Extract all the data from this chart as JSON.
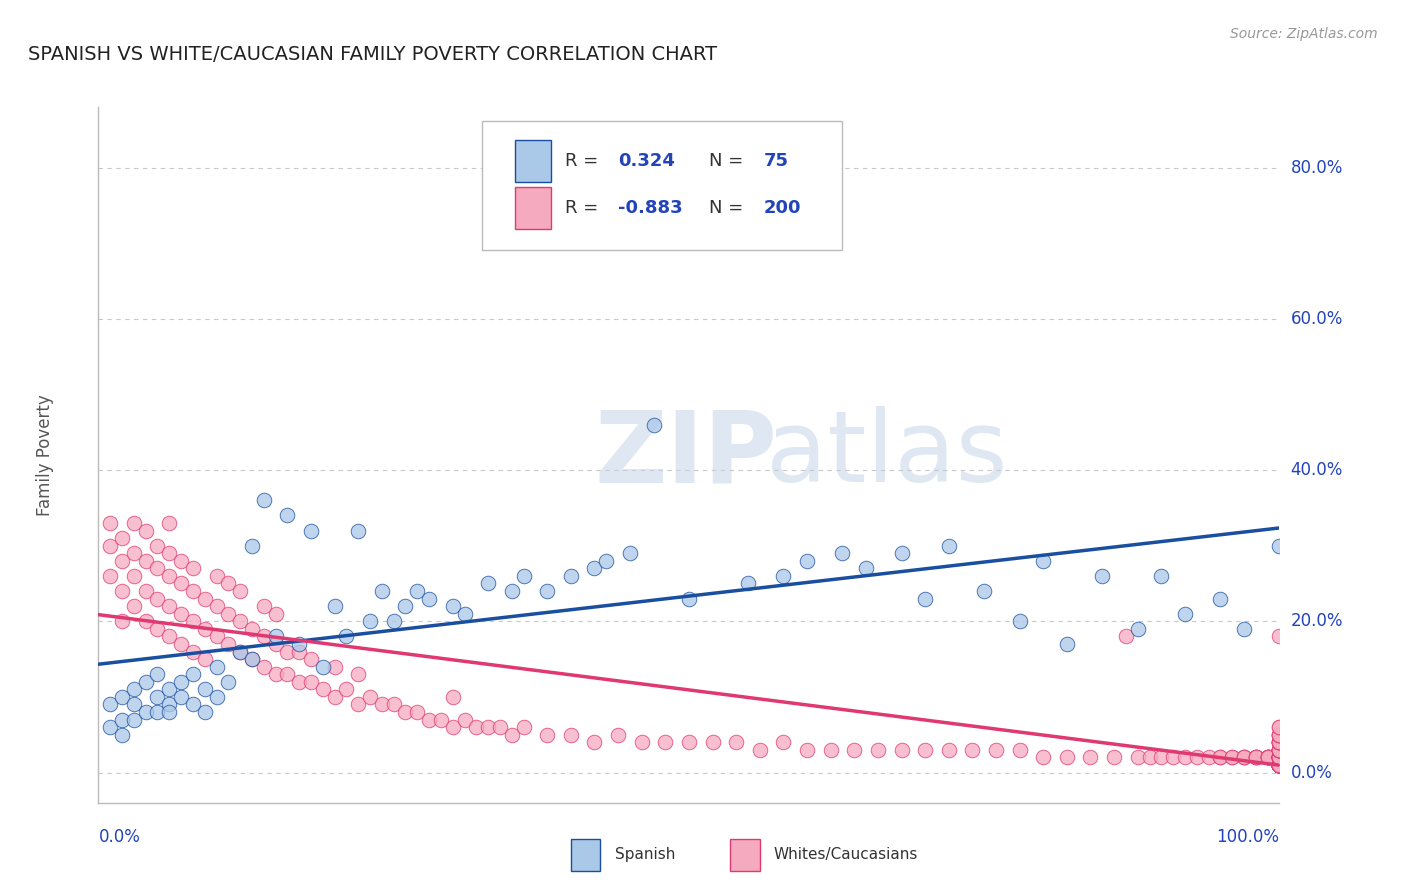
{
  "title": "SPANISH VS WHITE/CAUCASIAN FAMILY POVERTY CORRELATION CHART",
  "source": "Source: ZipAtlas.com",
  "ylabel": "Family Poverty",
  "ytick_vals": [
    0.0,
    0.2,
    0.4,
    0.6,
    0.8
  ],
  "ytick_labels": [
    "0.0%",
    "20.0%",
    "40.0%",
    "60.0%",
    "80.0%"
  ],
  "xlim": [
    0.0,
    1.0
  ],
  "ylim": [
    -0.04,
    0.88
  ],
  "spanish_R": "0.324",
  "spanish_N": "75",
  "white_R": "-0.883",
  "white_N": "200",
  "spanish_color": "#aac8e8",
  "white_color": "#f5aabf",
  "spanish_line_color": "#1a4fa0",
  "white_line_color": "#e03870",
  "background_color": "#ffffff",
  "grid_color": "#c8c8c8",
  "title_color": "#222222",
  "watermark_zip": "ZIP",
  "watermark_atlas": "atlas",
  "legend_text_color": "#2244bb",
  "spanish_x": [
    0.01,
    0.01,
    0.02,
    0.02,
    0.02,
    0.03,
    0.03,
    0.03,
    0.04,
    0.04,
    0.05,
    0.05,
    0.05,
    0.06,
    0.06,
    0.06,
    0.07,
    0.07,
    0.08,
    0.08,
    0.09,
    0.09,
    0.1,
    0.1,
    0.11,
    0.12,
    0.13,
    0.13,
    0.14,
    0.15,
    0.16,
    0.17,
    0.18,
    0.19,
    0.2,
    0.21,
    0.22,
    0.23,
    0.24,
    0.25,
    0.26,
    0.27,
    0.28,
    0.3,
    0.31,
    0.33,
    0.35,
    0.36,
    0.38,
    0.4,
    0.42,
    0.43,
    0.45,
    0.47,
    0.5,
    0.52,
    0.55,
    0.58,
    0.6,
    0.63,
    0.65,
    0.68,
    0.7,
    0.72,
    0.75,
    0.78,
    0.8,
    0.82,
    0.85,
    0.88,
    0.9,
    0.92,
    0.95,
    0.97,
    1.0
  ],
  "spanish_y": [
    0.06,
    0.09,
    0.07,
    0.1,
    0.05,
    0.09,
    0.11,
    0.07,
    0.08,
    0.12,
    0.1,
    0.08,
    0.13,
    0.09,
    0.11,
    0.08,
    0.12,
    0.1,
    0.09,
    0.13,
    0.11,
    0.08,
    0.14,
    0.1,
    0.12,
    0.16,
    0.3,
    0.15,
    0.36,
    0.18,
    0.34,
    0.17,
    0.32,
    0.14,
    0.22,
    0.18,
    0.32,
    0.2,
    0.24,
    0.2,
    0.22,
    0.24,
    0.23,
    0.22,
    0.21,
    0.25,
    0.24,
    0.26,
    0.24,
    0.26,
    0.27,
    0.28,
    0.29,
    0.46,
    0.23,
    0.72,
    0.25,
    0.26,
    0.28,
    0.29,
    0.27,
    0.29,
    0.23,
    0.3,
    0.24,
    0.2,
    0.28,
    0.17,
    0.26,
    0.19,
    0.26,
    0.21,
    0.23,
    0.19,
    0.3
  ],
  "white_x": [
    0.01,
    0.01,
    0.01,
    0.02,
    0.02,
    0.02,
    0.02,
    0.03,
    0.03,
    0.03,
    0.03,
    0.04,
    0.04,
    0.04,
    0.04,
    0.05,
    0.05,
    0.05,
    0.05,
    0.06,
    0.06,
    0.06,
    0.06,
    0.06,
    0.07,
    0.07,
    0.07,
    0.07,
    0.08,
    0.08,
    0.08,
    0.08,
    0.09,
    0.09,
    0.09,
    0.1,
    0.1,
    0.1,
    0.11,
    0.11,
    0.11,
    0.12,
    0.12,
    0.12,
    0.13,
    0.13,
    0.14,
    0.14,
    0.14,
    0.15,
    0.15,
    0.15,
    0.16,
    0.16,
    0.17,
    0.17,
    0.18,
    0.18,
    0.19,
    0.2,
    0.2,
    0.21,
    0.22,
    0.22,
    0.23,
    0.24,
    0.25,
    0.26,
    0.27,
    0.28,
    0.29,
    0.3,
    0.3,
    0.31,
    0.32,
    0.33,
    0.34,
    0.35,
    0.36,
    0.38,
    0.4,
    0.42,
    0.44,
    0.46,
    0.48,
    0.5,
    0.52,
    0.54,
    0.56,
    0.58,
    0.6,
    0.62,
    0.64,
    0.66,
    0.68,
    0.7,
    0.72,
    0.74,
    0.76,
    0.78,
    0.8,
    0.82,
    0.84,
    0.86,
    0.87,
    0.88,
    0.89,
    0.9,
    0.91,
    0.92,
    0.93,
    0.94,
    0.95,
    0.95,
    0.96,
    0.96,
    0.97,
    0.97,
    0.97,
    0.98,
    0.98,
    0.98,
    0.98,
    0.99,
    0.99,
    0.99,
    0.99,
    0.99,
    0.99,
    1.0,
    1.0,
    1.0,
    1.0,
    1.0,
    1.0,
    1.0,
    1.0,
    1.0,
    1.0,
    1.0,
    1.0,
    1.0,
    1.0,
    1.0,
    1.0,
    1.0,
    1.0,
    1.0,
    1.0,
    1.0,
    1.0,
    1.0,
    1.0,
    1.0,
    1.0,
    1.0,
    1.0,
    1.0,
    1.0,
    1.0,
    1.0,
    1.0,
    1.0,
    1.0,
    1.0,
    1.0,
    1.0,
    1.0,
    1.0,
    1.0,
    1.0,
    1.0,
    1.0,
    1.0,
    1.0,
    1.0,
    1.0,
    1.0,
    1.0,
    1.0,
    1.0,
    1.0,
    1.0,
    1.0,
    1.0,
    1.0,
    1.0,
    1.0,
    1.0,
    1.0,
    1.0,
    1.0,
    1.0,
    1.0,
    1.0,
    1.0,
    1.0,
    1.0,
    1.0,
    1.0,
    1.0,
    1.0,
    1.0,
    1.0,
    1.0,
    1.0,
    1.0,
    1.0,
    1.0
  ],
  "white_y": [
    0.3,
    0.26,
    0.33,
    0.28,
    0.24,
    0.31,
    0.2,
    0.26,
    0.22,
    0.29,
    0.33,
    0.24,
    0.28,
    0.2,
    0.32,
    0.23,
    0.27,
    0.19,
    0.3,
    0.22,
    0.26,
    0.18,
    0.29,
    0.33,
    0.21,
    0.25,
    0.17,
    0.28,
    0.2,
    0.24,
    0.16,
    0.27,
    0.19,
    0.23,
    0.15,
    0.18,
    0.22,
    0.26,
    0.17,
    0.21,
    0.25,
    0.16,
    0.2,
    0.24,
    0.15,
    0.19,
    0.14,
    0.18,
    0.22,
    0.13,
    0.17,
    0.21,
    0.13,
    0.16,
    0.12,
    0.16,
    0.12,
    0.15,
    0.11,
    0.1,
    0.14,
    0.11,
    0.09,
    0.13,
    0.1,
    0.09,
    0.09,
    0.08,
    0.08,
    0.07,
    0.07,
    0.06,
    0.1,
    0.07,
    0.06,
    0.06,
    0.06,
    0.05,
    0.06,
    0.05,
    0.05,
    0.04,
    0.05,
    0.04,
    0.04,
    0.04,
    0.04,
    0.04,
    0.03,
    0.04,
    0.03,
    0.03,
    0.03,
    0.03,
    0.03,
    0.03,
    0.03,
    0.03,
    0.03,
    0.03,
    0.02,
    0.02,
    0.02,
    0.02,
    0.18,
    0.02,
    0.02,
    0.02,
    0.02,
    0.02,
    0.02,
    0.02,
    0.02,
    0.02,
    0.02,
    0.02,
    0.02,
    0.02,
    0.02,
    0.02,
    0.02,
    0.02,
    0.02,
    0.02,
    0.02,
    0.02,
    0.02,
    0.02,
    0.02,
    0.01,
    0.01,
    0.01,
    0.01,
    0.01,
    0.01,
    0.01,
    0.01,
    0.01,
    0.01,
    0.01,
    0.01,
    0.01,
    0.01,
    0.01,
    0.01,
    0.01,
    0.01,
    0.01,
    0.01,
    0.01,
    0.01,
    0.01,
    0.01,
    0.01,
    0.01,
    0.01,
    0.01,
    0.01,
    0.01,
    0.01,
    0.01,
    0.01,
    0.01,
    0.01,
    0.01,
    0.01,
    0.01,
    0.01,
    0.01,
    0.01,
    0.01,
    0.01,
    0.01,
    0.01,
    0.01,
    0.02,
    0.02,
    0.02,
    0.02,
    0.02,
    0.02,
    0.02,
    0.02,
    0.02,
    0.02,
    0.02,
    0.02,
    0.02,
    0.03,
    0.03,
    0.03,
    0.03,
    0.03,
    0.03,
    0.03,
    0.03,
    0.04,
    0.04,
    0.04,
    0.04,
    0.04,
    0.04,
    0.05,
    0.05,
    0.05,
    0.05,
    0.06,
    0.06,
    0.18
  ]
}
